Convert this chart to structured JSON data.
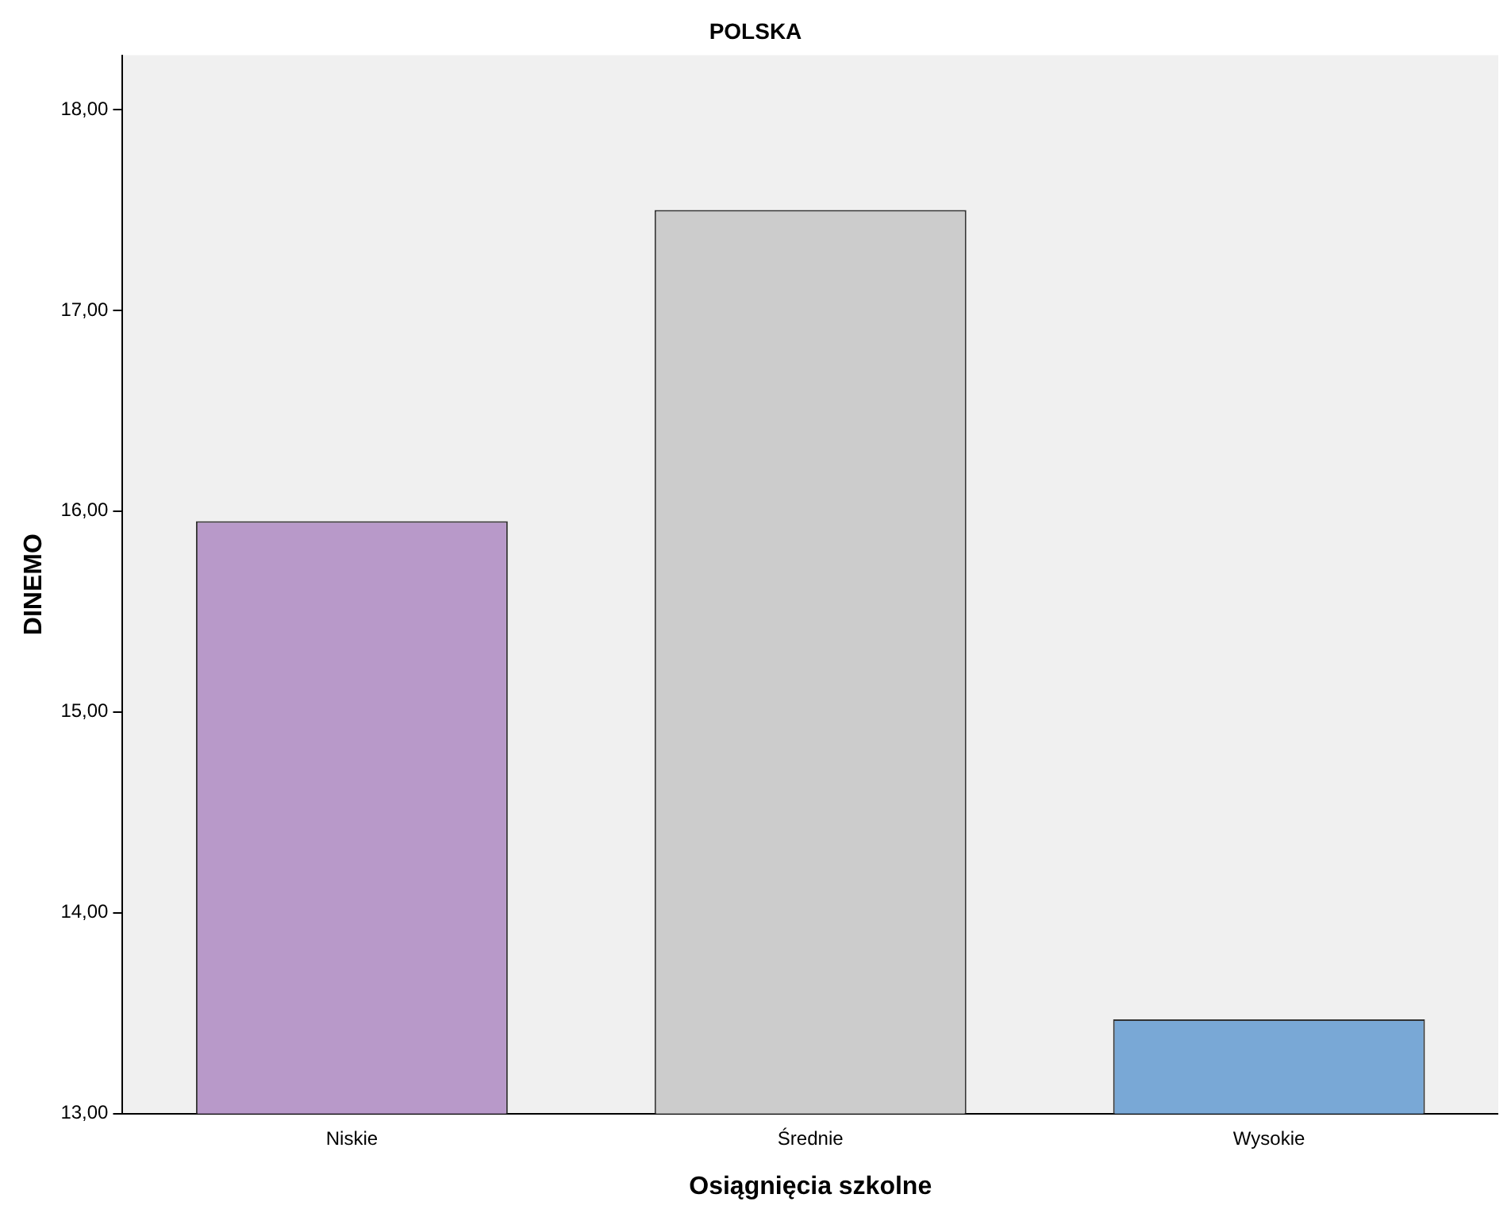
{
  "chart_data": {
    "type": "bar",
    "title": "POLSKA",
    "xlabel": "Osiągnięcia szkolne",
    "ylabel": "DINEMO",
    "categories": [
      "Niskie",
      "Średnie",
      "Wysokie"
    ],
    "values": [
      15.95,
      17.5,
      13.47
    ],
    "colors": [
      "#b899c9",
      "#cccccc",
      "#79a8d6"
    ],
    "ylim": [
      13,
      18.27
    ],
    "yticks": [
      {
        "value": 13,
        "label": "13,00"
      },
      {
        "value": 14,
        "label": "14,00"
      },
      {
        "value": 15,
        "label": "15,00"
      },
      {
        "value": 16,
        "label": "16,00"
      },
      {
        "value": 17,
        "label": "17,00"
      },
      {
        "value": 18,
        "label": "18,00"
      }
    ],
    "grid": false,
    "legend": false
  }
}
